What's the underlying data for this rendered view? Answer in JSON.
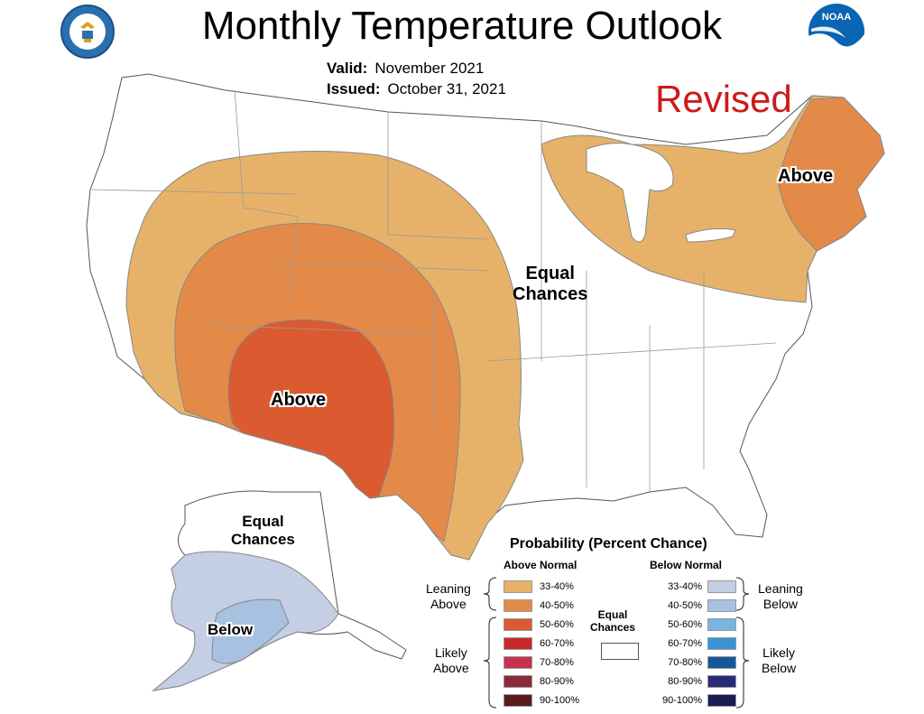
{
  "header": {
    "title": "Monthly Temperature Outlook",
    "valid_label": "Valid:",
    "valid_value": "November 2021",
    "issued_label": "Issued:",
    "issued_value": "October 31, 2021",
    "revised": "Revised"
  },
  "logos": {
    "commerce": "department-of-commerce-seal",
    "noaa_text": "NOAA"
  },
  "map_labels": {
    "above_southwest": "Above",
    "above_northeast": "Above",
    "equal_chances_conus_1": "Equal",
    "equal_chances_conus_2": "Chances",
    "equal_chances_alaska_1": "Equal",
    "equal_chances_alaska_2": "Chances",
    "below_alaska": "Below"
  },
  "legend": {
    "title": "Probability (Percent Chance)",
    "above_header": "Above Normal",
    "below_header": "Below Normal",
    "equal_1": "Equal",
    "equal_2": "Chances",
    "leaning_above_1": "Leaning",
    "leaning_above_2": "Above",
    "likely_above_1": "Likely",
    "likely_above_2": "Above",
    "leaning_below_1": "Leaning",
    "leaning_below_2": "Below",
    "likely_below_1": "Likely",
    "likely_below_2": "Below",
    "above": [
      {
        "range": "33-40%",
        "color": "#e6b26a"
      },
      {
        "range": "40-50%",
        "color": "#e48a48"
      },
      {
        "range": "50-60%",
        "color": "#db5a30"
      },
      {
        "range": "60-70%",
        "color": "#c9282b"
      },
      {
        "range": "70-80%",
        "color": "#c83050"
      },
      {
        "range": "80-90%",
        "color": "#8b2a38"
      },
      {
        "range": "90-100%",
        "color": "#5a1a1c"
      }
    ],
    "below": [
      {
        "range": "33-40%",
        "color": "#c4cfe6"
      },
      {
        "range": "40-50%",
        "color": "#a7c1e0"
      },
      {
        "range": "50-60%",
        "color": "#7bb4e0"
      },
      {
        "range": "60-70%",
        "color": "#3b93d6"
      },
      {
        "range": "70-80%",
        "color": "#14589a"
      },
      {
        "range": "80-90%",
        "color": "#2a2a7a"
      },
      {
        "range": "90-100%",
        "color": "#1a1a55"
      }
    ]
  }
}
